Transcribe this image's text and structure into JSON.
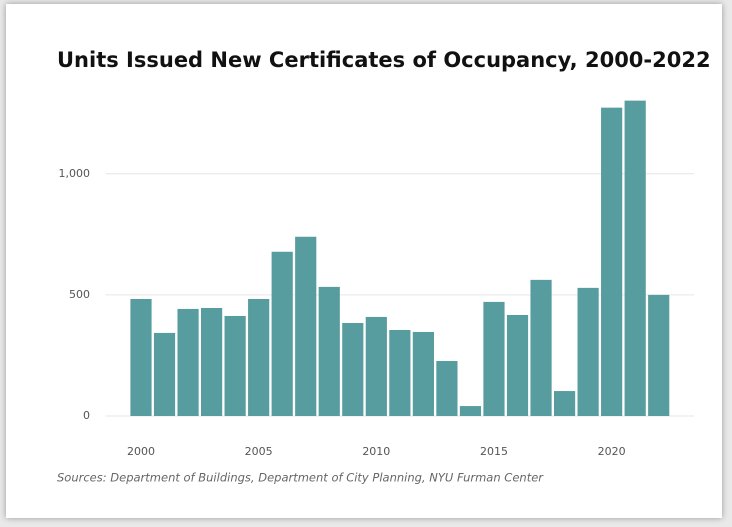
{
  "chart_data": {
    "type": "bar",
    "title": "Units Issued New Certificates of Occupancy, 2000-2022",
    "source": "Sources: Department of Buildings, Department of City Planning, NYU Furman Center",
    "x": [
      2000,
      2001,
      2002,
      2003,
      2004,
      2005,
      2006,
      2007,
      2008,
      2009,
      2010,
      2011,
      2012,
      2013,
      2014,
      2015,
      2016,
      2017,
      2018,
      2019,
      2020,
      2021,
      2022
    ],
    "values": [
      483,
      343,
      442,
      446,
      413,
      483,
      678,
      740,
      533,
      384,
      409,
      355,
      347,
      227,
      41,
      471,
      417,
      562,
      103,
      529,
      1273,
      1302,
      500
    ],
    "color": "#579c9e",
    "xlim": [
      1998.5,
      2023.5
    ],
    "xticks": [
      2000,
      2005,
      2010,
      2015,
      2020
    ],
    "ylim": [
      0,
      1350
    ],
    "yticks": [
      0,
      500,
      {
        "value": 1000,
        "label": "1,000"
      }
    ],
    "grid": true
  }
}
